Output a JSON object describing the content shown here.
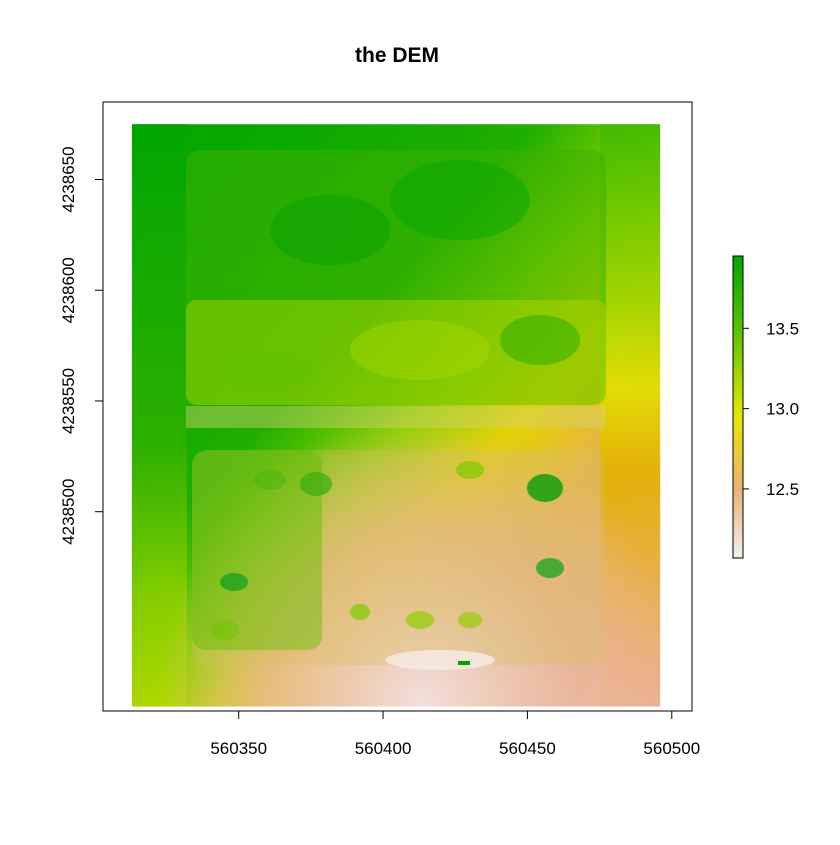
{
  "chart_data": {
    "type": "heatmap",
    "title": "the DEM",
    "xlabel": "",
    "ylabel": "",
    "x_range": [
      560303,
      560507
    ],
    "y_range": [
      4238410,
      4238685
    ],
    "raster_extent": {
      "x": [
        560313,
        560496
      ],
      "y": [
        4238412,
        4238675
      ]
    },
    "x_ticks": [
      {
        "value": 560350,
        "label": "560350"
      },
      {
        "value": 560400,
        "label": "560400"
      },
      {
        "value": 560450,
        "label": "560450"
      },
      {
        "value": 560500,
        "label": "560500"
      }
    ],
    "y_ticks": [
      {
        "value": 4238500,
        "label": "4238500"
      },
      {
        "value": 4238550,
        "label": "4238550"
      },
      {
        "value": 4238600,
        "label": "4238600"
      },
      {
        "value": 4238650,
        "label": "4238650"
      }
    ],
    "colorbar": {
      "range": [
        12.07,
        13.95
      ],
      "ticks": [
        {
          "value": 12.5,
          "label": "12.5"
        },
        {
          "value": 13.0,
          "label": "13.0"
        },
        {
          "value": 13.5,
          "label": "13.5"
        }
      ],
      "colors": [
        "#F2F2F2",
        "#ECB176",
        "#E6E600",
        "#63C600",
        "#00A600"
      ]
    }
  }
}
